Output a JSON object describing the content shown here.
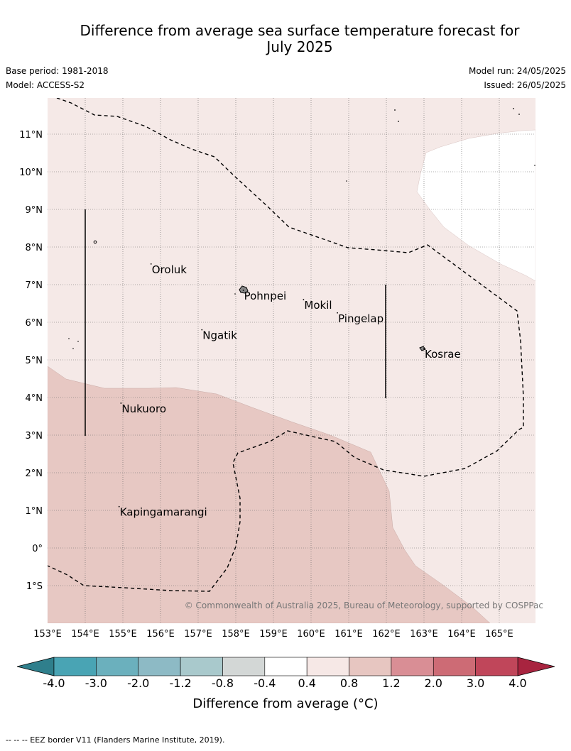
{
  "title_line1": "Difference from average sea surface temperature forecast for",
  "title_line2": "July 2025",
  "base_period": "Base period: 1981-2018",
  "model": "Model: ACCESS-S2",
  "model_run": "Model run: 24/05/2025",
  "issued": "Issued: 26/05/2025",
  "copyright": "© Commonwealth of Australia 2025, Bureau of Meteorology, supported by COSPPac",
  "lat_labels": [
    "11°N",
    "10°N",
    "9°N",
    "8°N",
    "7°N",
    "6°N",
    "5°N",
    "4°N",
    "3°N",
    "2°N",
    "1°N",
    "0°",
    "1°S"
  ],
  "lon_labels": [
    "153°E",
    "154°E",
    "155°E",
    "156°E",
    "157°E",
    "158°E",
    "159°E",
    "160°E",
    "161°E",
    "162°E",
    "163°E",
    "164°E",
    "165°E"
  ],
  "places": [
    {
      "name": "Oroluk",
      "lon": 155.75,
      "lat": 7.55
    },
    {
      "name": "Pohnpei",
      "lon": 158.2,
      "lat": 6.85
    },
    {
      "name": "Mokil",
      "lon": 159.8,
      "lat": 6.6
    },
    {
      "name": "Pingelap",
      "lon": 160.7,
      "lat": 6.25
    },
    {
      "name": "Ngatik",
      "lon": 157.1,
      "lat": 5.8
    },
    {
      "name": "Kosrae",
      "lon": 163.0,
      "lat": 5.3
    },
    {
      "name": "Nukuoro",
      "lon": 154.95,
      "lat": 3.85
    },
    {
      "name": "Kapingamarangi",
      "lon": 154.9,
      "lat": 1.1
    }
  ],
  "colorbar": {
    "ticks": [
      "-4.0",
      "-3.0",
      "-2.0",
      "-1.2",
      "-0.8",
      "-0.4",
      "0.4",
      "0.8",
      "1.2",
      "2.0",
      "3.0",
      "4.0"
    ],
    "colors": [
      "#49a4b4",
      "#6bb0bd",
      "#8dbac5",
      "#a9c9cc",
      "#d3d7d6",
      "#ffffff",
      "#f6e8e6",
      "#e7c6c1",
      "#d98e95",
      "#cd6b75",
      "#c0465a"
    ],
    "under_color": "#2f7f8c",
    "over_color": "#a8243f",
    "label": "Difference from average (°C)"
  },
  "footnote": "--  --  -- EEZ border V11 (Flanders Marine Institute, 2019)."
}
